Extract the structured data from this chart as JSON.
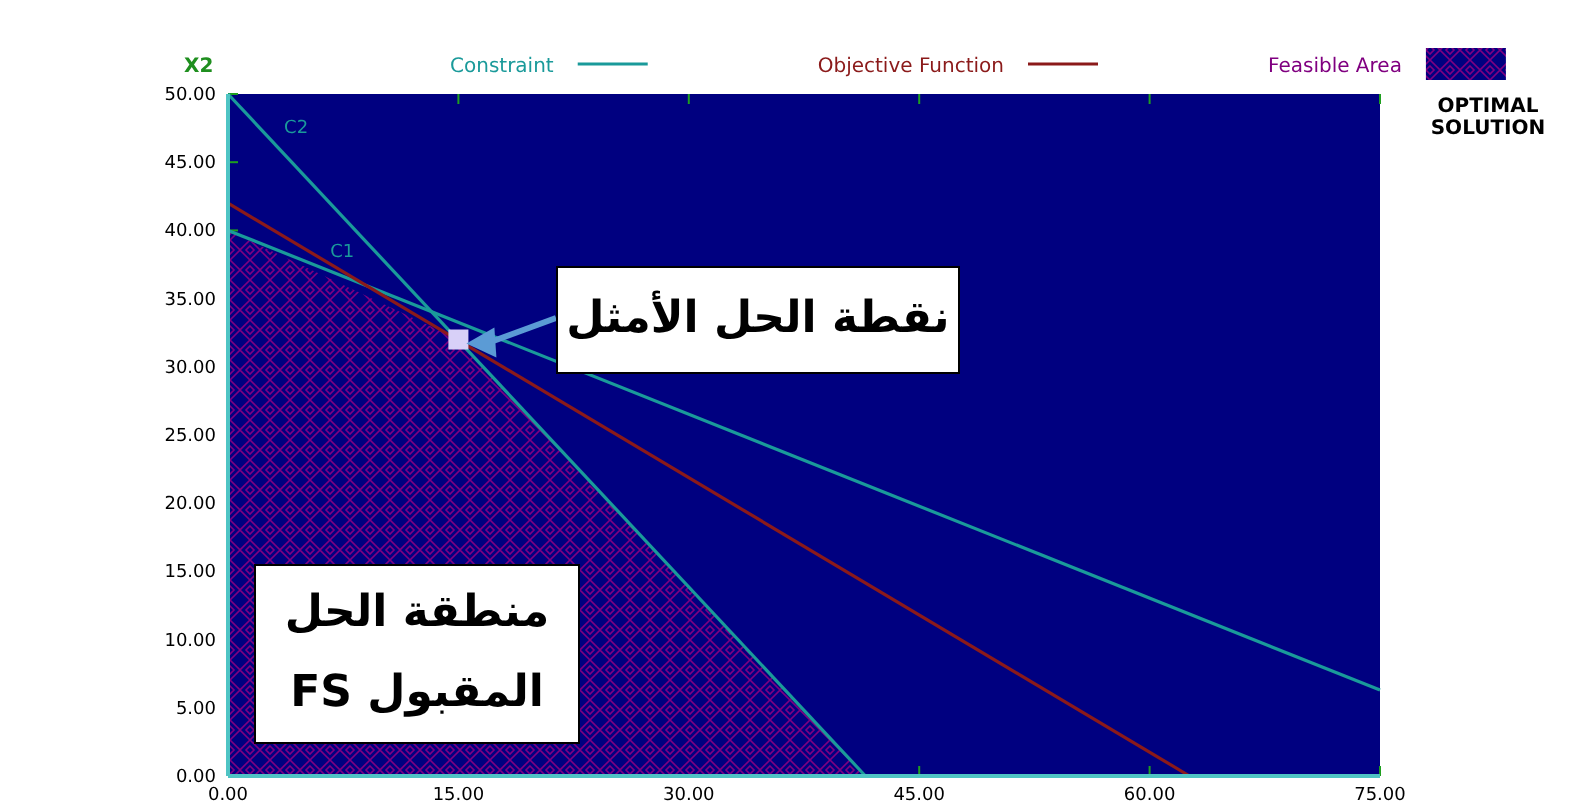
{
  "chart_data": {
    "type": "line",
    "ylabel": "X2",
    "xlim": [
      0,
      75
    ],
    "ylim": [
      0,
      50
    ],
    "xticks": [
      {
        "value": 0,
        "label": "0.00"
      },
      {
        "value": 15,
        "label": "15.00"
      },
      {
        "value": 30,
        "label": "30.00"
      },
      {
        "value": 45,
        "label": "45.00"
      },
      {
        "value": 60,
        "label": "60.00"
      },
      {
        "value": 75,
        "label": "75.00"
      }
    ],
    "yticks": [
      {
        "value": 0,
        "label": "0.00"
      },
      {
        "value": 5,
        "label": "5.00"
      },
      {
        "value": 10,
        "label": "10.00"
      },
      {
        "value": 15,
        "label": "15.00"
      },
      {
        "value": 20,
        "label": "20.00"
      },
      {
        "value": 25,
        "label": "25.00"
      },
      {
        "value": 30,
        "label": "30.00"
      },
      {
        "value": 35,
        "label": "35.00"
      },
      {
        "value": 40,
        "label": "40.00"
      },
      {
        "value": 45,
        "label": "45.00"
      },
      {
        "value": 50,
        "label": "50.00"
      }
    ],
    "series": [
      {
        "name": "Constraint",
        "color": "#1a9a9a",
        "x": [
          0,
          75
        ],
        "values": [
          40,
          6.3
        ]
      },
      {
        "color": "#1a9a9a",
        "x": [
          0,
          41.5
        ],
        "values": [
          50,
          0
        ]
      },
      {
        "name": "Objective Function",
        "color": "#8b1a1a",
        "x": [
          0,
          62.6
        ],
        "values": [
          42,
          0
        ]
      },
      {
        "name": "Feasible Area",
        "type": "area",
        "color": "#800080",
        "x": [
          0,
          15,
          41.5
        ],
        "values": [
          40,
          32,
          0
        ]
      },
      {
        "type": "scatter",
        "color": "#d8d0f8",
        "marker": "square",
        "x": [
          15
        ],
        "values": [
          32
        ]
      }
    ],
    "annotations": [
      {
        "text": "C1",
        "x": 6,
        "y": 37.3
      },
      {
        "text": "C2",
        "x": 3,
        "y": 46.4
      },
      {
        "text": "نقطة الحل الأمثل",
        "x": 15,
        "y": 32
      },
      "منطقة الحل المقبول FS",
      "OPTIMAL SOLUTION"
    ],
    "legend": "top",
    "grid": false
  }
}
